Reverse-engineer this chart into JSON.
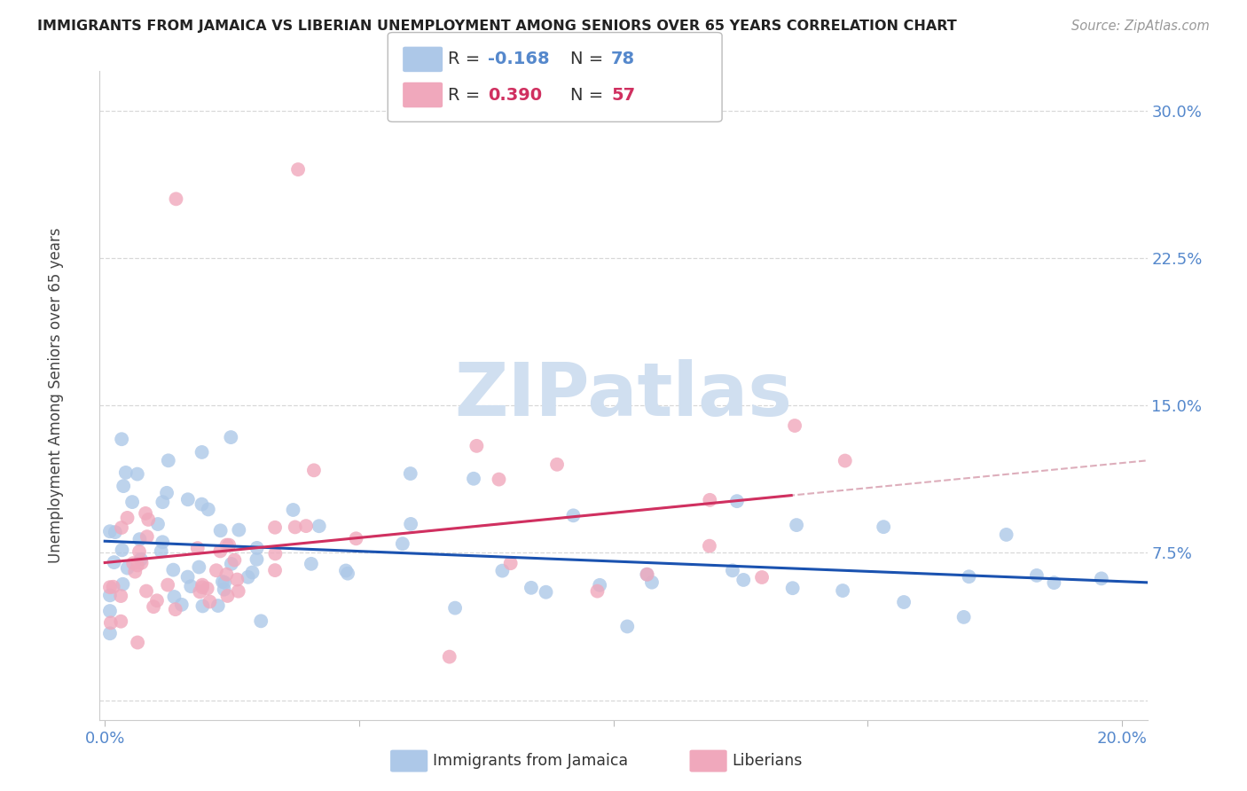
{
  "title": "IMMIGRANTS FROM JAMAICA VS LIBERIAN UNEMPLOYMENT AMONG SENIORS OVER 65 YEARS CORRELATION CHART",
  "source": "Source: ZipAtlas.com",
  "ylabel": "Unemployment Among Seniors over 65 years",
  "ytick_labels": [
    "",
    "7.5%",
    "15.0%",
    "22.5%",
    "30.0%"
  ],
  "xlim": [
    -0.001,
    0.205
  ],
  "ylim": [
    -0.01,
    0.32
  ],
  "legend1_R": "-0.168",
  "legend1_N": "78",
  "legend2_R": "0.390",
  "legend2_N": "57",
  "jamaica_color": "#adc8e8",
  "liberia_color": "#f0a8bc",
  "jamaica_line_color": "#1a52b0",
  "liberia_line_color": "#d03060",
  "dashed_line_color": "#d8a0b0",
  "background_color": "#ffffff",
  "grid_color": "#d8d8d8",
  "watermark_color": "#d0dff0",
  "label_color": "#5588cc",
  "text_color": "#444444",
  "title_color": "#222222",
  "source_color": "#999999"
}
